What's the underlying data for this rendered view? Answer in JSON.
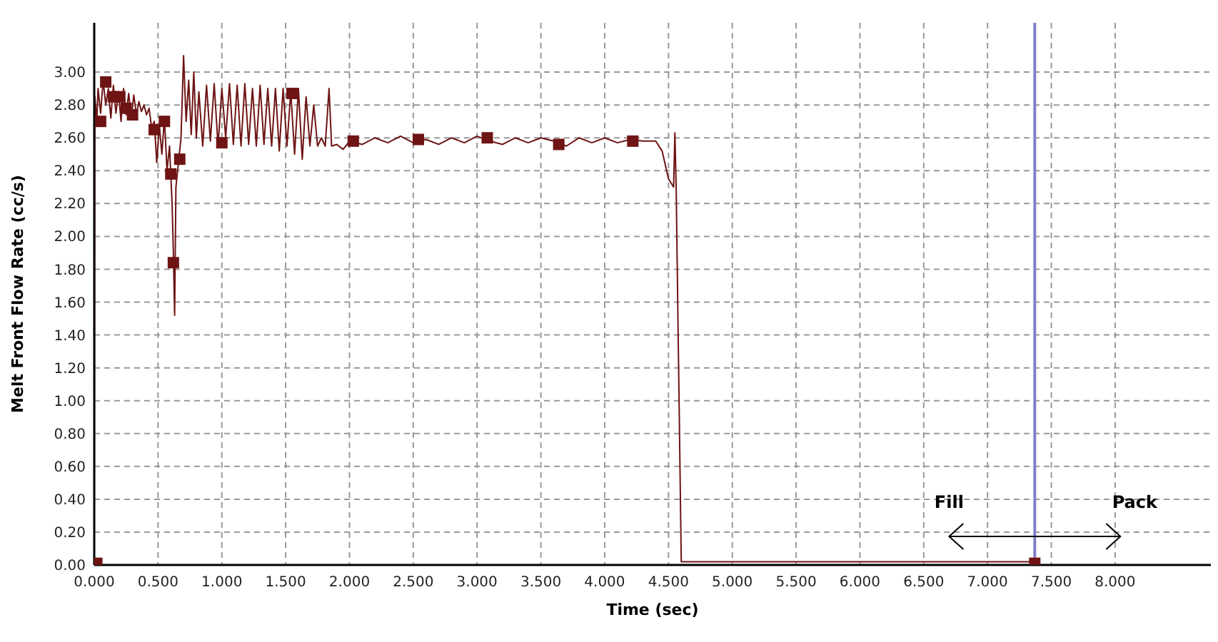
{
  "chart_data": {
    "type": "line",
    "xlabel": "Time (sec)",
    "ylabel": "Melt Front Flow Rate (cc/s)",
    "xlim": [
      0,
      8.75
    ],
    "ylim": [
      0,
      3.3
    ],
    "xticks": [
      {
        "value": 0,
        "label": "0.000"
      },
      {
        "value": 0.5,
        "label": "0.500"
      },
      {
        "value": 1,
        "label": "1.000"
      },
      {
        "value": 1.5,
        "label": "1.500"
      },
      {
        "value": 2,
        "label": "2.000"
      },
      {
        "value": 2.5,
        "label": "2.500"
      },
      {
        "value": 3,
        "label": "3.000"
      },
      {
        "value": 3.5,
        "label": "3.500"
      },
      {
        "value": 4,
        "label": "4.000"
      },
      {
        "value": 4.5,
        "label": "4.500"
      },
      {
        "value": 5,
        "label": "5.000"
      },
      {
        "value": 5.5,
        "label": "5.500"
      },
      {
        "value": 6,
        "label": "6.000"
      },
      {
        "value": 6.5,
        "label": "6.500"
      },
      {
        "value": 7,
        "label": "7.000"
      },
      {
        "value": 7.5,
        "label": "7.500"
      },
      {
        "value": 8,
        "label": "8.000"
      }
    ],
    "yticks": [
      {
        "value": 0,
        "label": "0.00"
      },
      {
        "value": 0.2,
        "label": "0.20"
      },
      {
        "value": 0.4,
        "label": "0.40"
      },
      {
        "value": 0.6,
        "label": "0.60"
      },
      {
        "value": 0.8,
        "label": "0.80"
      },
      {
        "value": 1,
        "label": "1.00"
      },
      {
        "value": 1.2,
        "label": "1.20"
      },
      {
        "value": 1.4,
        "label": "1.40"
      },
      {
        "value": 1.6,
        "label": "1.60"
      },
      {
        "value": 1.8,
        "label": "1.80"
      },
      {
        "value": 2,
        "label": "2.00"
      },
      {
        "value": 2.2,
        "label": "2.20"
      },
      {
        "value": 2.4,
        "label": "2.40"
      },
      {
        "value": 2.6,
        "label": "2.60"
      },
      {
        "value": 2.8,
        "label": "2.80"
      },
      {
        "value": 3,
        "label": "3.00"
      }
    ],
    "grid": true,
    "legend": false,
    "series": [
      {
        "color": "#6e1414",
        "marker": "none",
        "line_style": "solid",
        "x": [
          0,
          0.005,
          0.02,
          0.03,
          0.05,
          0.07,
          0.09,
          0.11,
          0.13,
          0.15,
          0.17,
          0.19,
          0.21,
          0.23,
          0.25,
          0.27,
          0.29,
          0.31,
          0.33,
          0.35,
          0.37,
          0.39,
          0.41,
          0.43,
          0.45,
          0.47,
          0.49,
          0.51,
          0.53,
          0.55,
          0.57,
          0.59,
          0.61,
          0.62,
          0.63,
          0.64,
          0.66,
          0.68,
          0.7,
          0.72,
          0.74,
          0.76,
          0.78,
          0.8,
          0.82,
          0.85,
          0.88,
          0.91,
          0.94,
          0.97,
          1,
          1.03,
          1.06,
          1.09,
          1.12,
          1.15,
          1.18,
          1.21,
          1.24,
          1.27,
          1.3,
          1.33,
          1.36,
          1.39,
          1.42,
          1.45,
          1.48,
          1.51,
          1.54,
          1.57,
          1.6,
          1.63,
          1.66,
          1.69,
          1.72,
          1.75,
          1.78,
          1.81,
          1.84,
          1.86,
          1.9,
          1.95,
          2,
          2.1,
          2.2,
          2.3,
          2.4,
          2.5,
          2.6,
          2.7,
          2.8,
          2.9,
          3,
          3.1,
          3.2,
          3.3,
          3.4,
          3.5,
          3.6,
          3.7,
          3.8,
          3.9,
          4,
          4.1,
          4.2,
          4.3,
          4.4,
          4.45,
          4.5,
          4.54,
          4.55,
          4.56,
          4.6,
          6,
          7.37
        ],
        "values": [
          0,
          2.85,
          2.7,
          2.9,
          2.75,
          2.95,
          2.8,
          2.9,
          2.72,
          2.92,
          2.75,
          2.88,
          2.7,
          2.9,
          2.74,
          2.87,
          2.72,
          2.86,
          2.74,
          2.82,
          2.76,
          2.8,
          2.74,
          2.78,
          2.66,
          2.7,
          2.45,
          2.68,
          2.5,
          2.72,
          2.4,
          2.55,
          2.2,
          1.9,
          1.52,
          2.3,
          2.45,
          2.6,
          3.1,
          2.7,
          2.95,
          2.62,
          3,
          2.6,
          2.88,
          2.55,
          2.92,
          2.58,
          2.93,
          2.55,
          2.9,
          2.6,
          2.93,
          2.56,
          2.92,
          2.55,
          2.93,
          2.56,
          2.9,
          2.55,
          2.92,
          2.56,
          2.9,
          2.55,
          2.9,
          2.52,
          2.9,
          2.55,
          2.88,
          2.5,
          2.9,
          2.47,
          2.85,
          2.55,
          2.8,
          2.55,
          2.6,
          2.55,
          2.9,
          2.55,
          2.56,
          2.53,
          2.58,
          2.56,
          2.6,
          2.57,
          2.61,
          2.57,
          2.59,
          2.56,
          2.6,
          2.57,
          2.61,
          2.58,
          2.56,
          2.6,
          2.57,
          2.6,
          2.58,
          2.55,
          2.6,
          2.57,
          2.6,
          2.57,
          2.59,
          2.58,
          2.58,
          2.52,
          2.35,
          2.3,
          2.63,
          2.3,
          0.02,
          0.02,
          0.02
        ]
      },
      {
        "type": "scatter",
        "color": "#6e1414",
        "marker": "square",
        "x": [
          0.02,
          0.05,
          0.09,
          0.15,
          0.2,
          0.25,
          0.3,
          0.47,
          0.55,
          0.6,
          0.62,
          0.67,
          1.0,
          1.55,
          2.03,
          2.54,
          3.08,
          3.64,
          4.22,
          7.37
        ],
        "values": [
          0.01,
          2.7,
          2.94,
          2.85,
          2.85,
          2.78,
          2.74,
          2.65,
          2.7,
          2.38,
          1.84,
          2.47,
          2.57,
          2.87,
          2.58,
          2.59,
          2.6,
          2.56,
          2.58,
          0.01
        ]
      }
    ],
    "ref_lines": [
      {
        "axis": "x",
        "value": 7.37,
        "color": "#8080c8",
        "line_style": "solid"
      }
    ],
    "annotations": [
      "Fill",
      "Pack"
    ]
  }
}
